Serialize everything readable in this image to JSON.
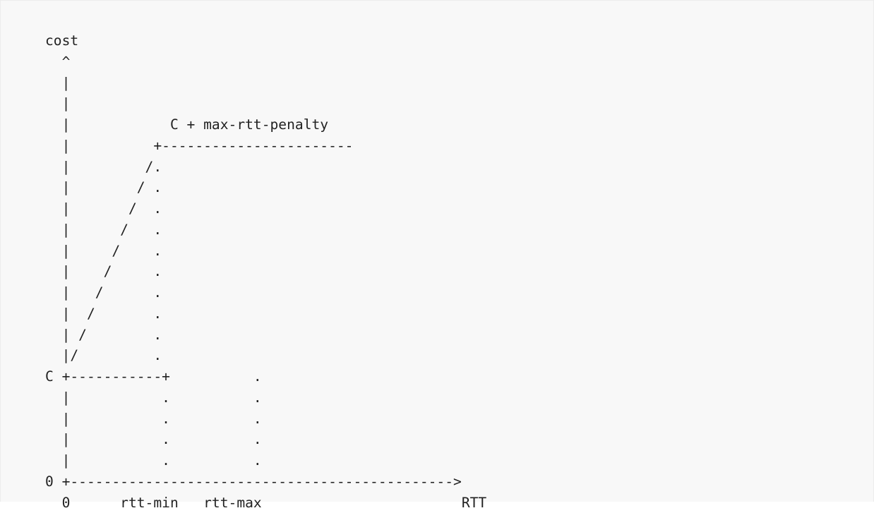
{
  "figure": {
    "lines": [
      "cost",
      "  ^",
      "  |",
      "  |",
      "  |            C + max-rtt-penalty",
      "  |          +-----------------------",
      "  |         /.",
      "  |        / .",
      "  |       /  .",
      "  |      /   .",
      "  |     /    .",
      "  |    /     .",
      "  |   /      .",
      "  |  /       .",
      "  | /        .",
      "  |/         .",
      "C +-----------+          .",
      "  |           .          .",
      "  |           .          .",
      "  |           .          .",
      "  |           .          .",
      "0 +---------------------------------------------->",
      "  0      rtt-min   rtt-max                        RTT"
    ]
  },
  "diagram": {
    "y_axis_label": "cost",
    "x_axis_label": "RTT",
    "y_ticks": [
      "C",
      "0"
    ],
    "x_ticks": [
      "0",
      "rtt-min",
      "rtt-max"
    ],
    "plateau_label": "C + max-rtt-penalty"
  }
}
